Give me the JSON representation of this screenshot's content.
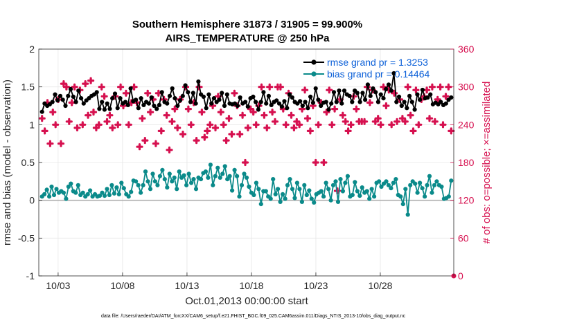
{
  "chart_data": {
    "type": "line",
    "title": "Southern Hemisphere 31873 / 31905 = 99.900%",
    "subtitle": "AIRS_TEMPERATURE @ 250 hPa",
    "xlabel": "Oct.01,2013 00:00:00 start",
    "ylabel_left": "rmse and bias (model - observation)",
    "ylabel_right": "# of obs: o=possible; ×=assimilated",
    "ylim_left": [
      -1,
      2
    ],
    "ylim_right": [
      0,
      360
    ],
    "xlim_days": [
      1.5,
      33.7
    ],
    "x_ticks": [
      "10/03",
      "10/08",
      "10/13",
      "10/18",
      "10/23",
      "10/28"
    ],
    "y_ticks_left": [
      "-1",
      "-0.5",
      "0",
      "0.5",
      "1",
      "1.5",
      "2"
    ],
    "y_ticks_right": [
      "0",
      "60",
      "120",
      "180",
      "240",
      "300",
      "360"
    ],
    "grid": true,
    "legend_position": "top-right",
    "colors": {
      "rmse": "#000000",
      "bias": "#0a8a8a",
      "obs": "#d6104f",
      "zero_line": "#b0b0b0",
      "right_axis": "#d6104f",
      "legend_text": "#0a5fd8"
    },
    "series": [
      {
        "name": "rmse grand pr = 1.3253",
        "values": [
          1.17,
          1.28,
          1.25,
          1.27,
          1.3,
          1.4,
          1.32,
          1.38,
          1.33,
          1.25,
          1.38,
          1.47,
          1.37,
          1.3,
          1.45,
          1.35,
          1.28,
          1.32,
          1.35,
          1.38,
          1.4,
          1.43,
          1.21,
          1.3,
          1.2,
          1.28,
          1.21,
          1.35,
          1.41,
          1.22,
          1.35,
          1.28,
          1.3,
          1.26,
          1.48,
          1.31,
          1.33,
          1.22,
          1.35,
          1.26,
          1.3,
          1.28,
          1.36,
          1.25,
          1.21,
          1.26,
          1.43,
          1.3,
          1.28,
          1.38,
          1.48,
          1.35,
          1.25,
          1.32,
          1.38,
          1.52,
          1.43,
          1.3,
          1.42,
          1.28,
          1.57,
          1.4,
          1.37,
          1.22,
          1.4,
          1.28,
          1.35,
          1.3,
          1.33,
          1.42,
          1.25,
          1.4,
          1.28,
          1.27,
          1.28,
          1.25,
          1.36,
          1.28,
          1.3,
          1.24,
          1.35,
          1.37,
          1.3,
          1.2,
          1.3,
          1.43,
          1.28,
          1.38,
          1.26,
          1.3,
          1.32,
          1.28,
          1.24,
          1.31,
          1.22,
          1.4,
          1.36,
          1.3,
          1.28,
          1.31,
          1.25,
          1.3,
          1.22,
          1.37,
          1.29,
          1.48,
          1.33,
          1.25,
          1.29,
          1.3,
          1.2,
          1.28,
          1.43,
          1.3,
          1.45,
          1.28,
          1.45,
          1.4,
          1.38,
          1.3,
          1.45,
          1.42,
          1.3,
          1.42,
          1.33,
          1.53,
          1.38,
          1.48,
          1.43,
          1.3,
          1.4,
          1.35,
          1.47,
          1.53,
          1.45,
          1.68,
          1.3,
          1.37,
          1.25,
          1.3,
          1.22,
          1.38,
          1.3,
          1.2,
          1.4,
          1.33,
          1.46,
          1.35,
          1.36,
          1.4,
          1.27,
          1.29,
          1.27,
          1.3,
          1.26,
          1.28,
          1.33,
          1.36
        ]
      },
      {
        "name": "bias grand pr = 0.14464",
        "values": [
          0.05,
          0.08,
          0.14,
          0.05,
          0.18,
          0.07,
          0.15,
          0.1,
          0.12,
          0.1,
          0.02,
          0.18,
          0.22,
          0.12,
          0.1,
          0.2,
          0.07,
          0.1,
          0.05,
          0.08,
          0.13,
          0.05,
          0.08,
          0.05,
          0.06,
          0.1,
          0.06,
          0.15,
          0.07,
          0.2,
          0.09,
          0.17,
          0.08,
          0.23,
          0.16,
          0.08,
          0.05,
          0.11,
          0.26,
          0.25,
          0.2,
          0.1,
          0.2,
          0.38,
          0.25,
          0.15,
          0.35,
          0.25,
          0.2,
          0.32,
          0.4,
          0.28,
          0.17,
          0.35,
          0.25,
          0.3,
          0.15,
          0.38,
          0.3,
          0.33,
          0.2,
          0.35,
          0.23,
          0.28,
          0.15,
          0.3,
          0.28,
          0.36,
          0.38,
          0.3,
          0.47,
          0.2,
          0.32,
          0.43,
          0.3,
          0.35,
          0.45,
          0.28,
          0.32,
          0.13,
          0.4,
          0.32,
          0.05,
          0.2,
          0.35,
          0.3,
          0.18,
          0.1,
          0.07,
          0.23,
          0.15,
          -0.05,
          0.12,
          0.12,
          0.05,
          0.02,
          0.28,
          0.08,
          0.15,
          -0.02,
          0.08,
          0.02,
          0.2,
          0.28,
          0.15,
          0.03,
          0.23,
          0.15,
          -0.02,
          0.2,
          0.07,
          0.13,
          0.02,
          -0.03,
          0.08,
          0.1,
          0.12,
          0.05,
          0.23,
          0.15,
          0.0,
          0.2,
          0.25,
          -0.02,
          0.28,
          0.12,
          0.23,
          0.32,
          0.05,
          0.07,
          0.24,
          0.12,
          0.06,
          0.17,
          0.1,
          0.12,
          0.02,
          0.15,
          0.05,
          0.23,
          0.25,
          0.18,
          0.22,
          0.25,
          0.2,
          0.16,
          0.23,
          0.28,
          0.07,
          0.05,
          -0.05,
          0.15,
          -0.19,
          0.2,
          0.25,
          0.22,
          0.1,
          0.23,
          0.16,
          0.05,
          0.2,
          0.32,
          0.1,
          0.2,
          0.25,
          0.2,
          0.18,
          0.02,
          0.03,
          0.05,
          0.26
        ]
      },
      {
        "name": "obs count assimilated",
        "values": [
          250,
          230,
          275,
          210,
          260,
          240,
          280,
          210,
          305,
          300,
          245,
          275,
          300,
          235,
          295,
          240,
          305,
          255,
          310,
          260,
          235,
          240,
          300,
          285,
          245,
          255,
          235,
          285,
          240,
          300,
          270,
          290,
          240,
          275,
          300,
          275,
          205,
          250,
          215,
          290,
          260,
          280,
          210,
          290,
          230,
          280,
          255,
          200,
          245,
          265,
          235,
          280,
          225,
          300,
          265,
          240,
          275,
          215,
          300,
          260,
          220,
          230,
          240,
          270,
          235,
          285,
          260,
          240,
          215,
          250,
          225,
          290,
          270,
          225,
          255,
          180,
          235,
          265,
          260,
          240,
          270,
          300,
          255,
          235,
          300,
          260,
          245,
          300,
          300,
          265,
          240,
          290,
          255,
          235,
          245,
          240,
          265,
          295,
          250,
          230,
          270,
          180,
          240,
          275,
          180,
          260,
          295,
          240,
          265,
          135,
          280,
          255,
          245,
          230,
          240,
          285,
          265,
          245,
          245,
          245,
          300,
          275,
          295,
          245,
          250,
          240,
          300,
          270,
          295,
          240,
          290,
          245,
          280,
          250,
          245,
          300,
          255,
          230,
          295,
          240,
          280,
          285,
          295,
          250,
          300,
          245,
          280,
          300,
          240,
          285,
          300,
          230
        ]
      }
    ]
  },
  "footer": {
    "data_file": "data file: /Users/raeder/DAI/ATM_forcXX/CAM6_setup/f.e21.FHIST_BGC.f09_025.CAM6assim.011/Diags_NTrS_2013-10/obs_diag_output.nc"
  }
}
